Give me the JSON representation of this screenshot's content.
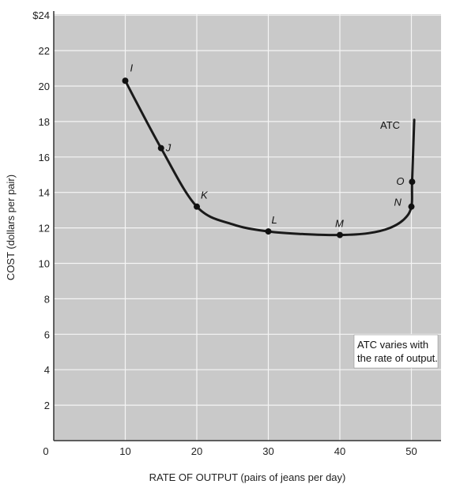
{
  "chart_data": {
    "type": "line",
    "title": "",
    "xlabel": "RATE OF OUTPUT (pairs of jeans per day)",
    "ylabel": "COST (dollars per pair)",
    "xlim": [
      0,
      55
    ],
    "ylim": [
      0,
      24
    ],
    "x_ticks": [
      {
        "value": 0,
        "label": "0"
      },
      {
        "value": 10,
        "label": "10"
      },
      {
        "value": 20,
        "label": "20"
      },
      {
        "value": 30,
        "label": "30"
      },
      {
        "value": 40,
        "label": "40"
      },
      {
        "value": 50,
        "label": "50"
      }
    ],
    "y_ticks": [
      {
        "value": 2,
        "label": "2"
      },
      {
        "value": 4,
        "label": "4"
      },
      {
        "value": 6,
        "label": "6"
      },
      {
        "value": 8,
        "label": "8"
      },
      {
        "value": 10,
        "label": "10"
      },
      {
        "value": 12,
        "label": "12"
      },
      {
        "value": 14,
        "label": "14"
      },
      {
        "value": 16,
        "label": "16"
      },
      {
        "value": 18,
        "label": "18"
      },
      {
        "value": 20,
        "label": "20"
      },
      {
        "value": 22,
        "label": "22"
      },
      {
        "value": 24,
        "label": "$24"
      }
    ],
    "grid": true,
    "series": [
      {
        "name": "ATC",
        "curve": [
          {
            "x": 10,
            "y": 20.3
          },
          {
            "x": 15,
            "y": 16.5
          },
          {
            "x": 20,
            "y": 13.2
          },
          {
            "x": 25,
            "y": 12.2
          },
          {
            "x": 30,
            "y": 11.8
          },
          {
            "x": 35,
            "y": 11.65
          },
          {
            "x": 40,
            "y": 11.6
          },
          {
            "x": 44,
            "y": 11.7
          },
          {
            "x": 47,
            "y": 12.0
          },
          {
            "x": 49,
            "y": 12.5
          },
          {
            "x": 50,
            "y": 13.2
          },
          {
            "x": 50.1,
            "y": 14.6
          },
          {
            "x": 50.4,
            "y": 18.1
          }
        ],
        "points": [
          {
            "label": "I",
            "x": 10,
            "y": 20.3
          },
          {
            "label": "J",
            "x": 15,
            "y": 16.5
          },
          {
            "label": "K",
            "x": 20,
            "y": 13.2
          },
          {
            "label": "L",
            "x": 30,
            "y": 11.8
          },
          {
            "label": "M",
            "x": 40,
            "y": 11.6
          },
          {
            "label": "N",
            "x": 50,
            "y": 13.2
          },
          {
            "label": "O",
            "x": 50.1,
            "y": 14.6
          }
        ]
      }
    ],
    "annotation": {
      "lines": [
        "ATC varies with",
        "the rate of output."
      ],
      "placement": "lower-right"
    },
    "colors": {
      "curve": "#1a1a1a",
      "plot_bg": "#c9c9c9",
      "grid": "#f5f5f5"
    }
  }
}
